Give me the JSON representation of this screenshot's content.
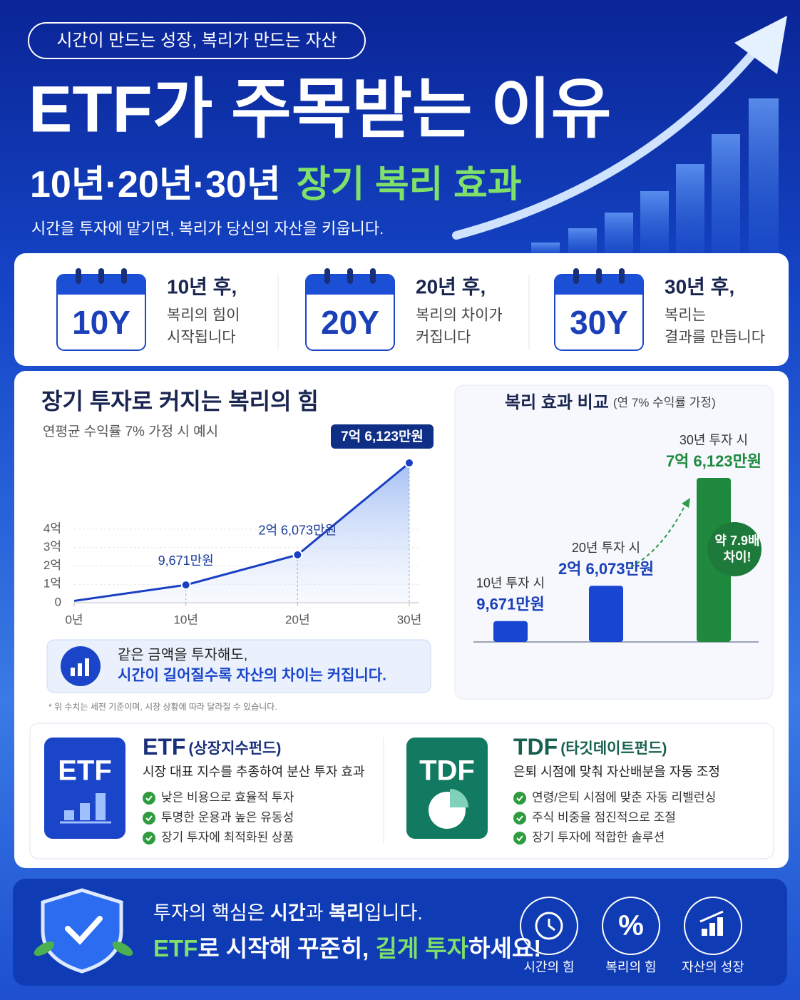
{
  "header": {
    "badge": "시간이 만드는 성장, 복리가 만드는 자산",
    "title": "ETF가 주목받는 이유",
    "subtitle_lead": "10년·20년·30년",
    "subtitle_highlight": "장기 복리 효과",
    "description": "시간을 투자에 맡기면, 복리가 당신의 자산을 키웁니다."
  },
  "milestones": [
    {
      "icon": "10Y",
      "title": "10년 후,",
      "lines": [
        "복리의 힘이",
        "시작됩니다"
      ]
    },
    {
      "icon": "20Y",
      "title": "20년 후,",
      "lines": [
        "복리의 차이가",
        "커집니다"
      ]
    },
    {
      "icon": "30Y",
      "title": "30년 후,",
      "lines": [
        "복리는",
        "결과를 만듭니다"
      ]
    }
  ],
  "chart_data": [
    {
      "type": "line",
      "title": "장기 투자로 커지는 복리의 힘",
      "subtitle": "연평균 수익률 7% 가정 시 예시",
      "x": [
        0,
        10,
        20,
        30
      ],
      "values": [
        0.1,
        0.9671,
        2.6073,
        7.6123
      ],
      "value_labels": [
        null,
        "9,671만원",
        "2억 6,073만원",
        "7억 6,123만원"
      ],
      "color": "#1a3fc4",
      "xlim": [
        0,
        30
      ],
      "xticks": [
        {
          "value": 0,
          "label": "0년"
        },
        {
          "value": 10,
          "label": "10년"
        },
        {
          "value": 20,
          "label": "20년"
        },
        {
          "value": 30,
          "label": "30년"
        }
      ],
      "ylim": [
        0,
        4
      ],
      "yticks": [
        0,
        {
          "value": 1,
          "label": "1억"
        },
        {
          "value": 2,
          "label": "2억"
        },
        {
          "value": 3,
          "label": "3억"
        },
        {
          "value": 4,
          "label": "4억"
        }
      ],
      "grid": true
    },
    {
      "type": "bar",
      "title": "복리 효과 비교",
      "subtitle": "(연 7% 수익률 가정)",
      "categories": [
        "10년 투자 시",
        "20년 투자 시",
        "30년 투자 시"
      ],
      "values": [
        9671,
        26073,
        76123
      ],
      "value_labels": [
        "9,671만원",
        "2억 6,073만원",
        "7억 6,123만원"
      ],
      "colors": [
        "#1846d2",
        "#1846d2",
        "#1f8a3e"
      ],
      "annotation": [
        "약 7.9배",
        "차이!"
      ]
    }
  ],
  "note": {
    "lines": [
      "같은 금액을 투자해도,",
      "시간이 길어질수록 자산의 차이는 커집니다."
    ]
  },
  "disclaimer": "* 위 수치는 세전 기준이며, 시장 상황에 따라 달라질 수 있습니다.",
  "products": [
    {
      "icon": "ETF",
      "name": "ETF",
      "name_note": "(상장지수펀드)",
      "description": "시장 대표 지수를 추종하여 분산 투자 효과",
      "features": [
        "낮은 비용으로 효율적 투자",
        "투명한 운용과 높은 유동성",
        "장기 투자에 최적화된 상품"
      ]
    },
    {
      "icon": "TDF",
      "name": "TDF",
      "name_note": "(타깃데이트펀드)",
      "description": "은퇴 시점에 맞춰 자산배분을 자동 조정",
      "features": [
        "연령/은퇴 시점에 맞춘 자동 리밸런싱",
        "주식 비중을 점진적으로 조절",
        "장기 투자에 적합한 솔루션"
      ]
    }
  ],
  "footer": {
    "line1": [
      "투자의 핵심은 ",
      "시간",
      "과 ",
      "복리",
      "입니다."
    ],
    "line2": [
      "ETF",
      "로 시작해 꾸준히, ",
      "길게 투자",
      "하세요!"
    ],
    "pillars": [
      {
        "label": "시간의 힘"
      },
      {
        "symbol": "%",
        "label": "복리의 힘"
      },
      {
        "label": "자산의 성장"
      }
    ]
  }
}
